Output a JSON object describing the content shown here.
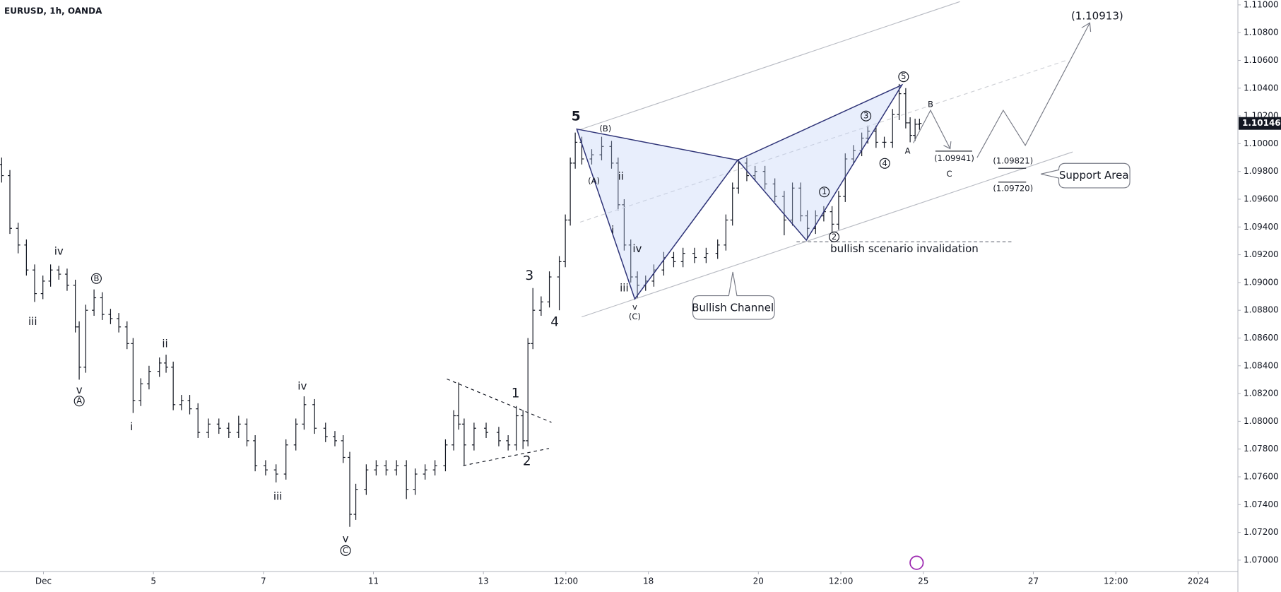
{
  "chart_data": {
    "type": "ohlc",
    "title": "EURUSD, 1h, OANDA",
    "color": "#131722",
    "x": [
      -0.76,
      -0.61,
      -0.46,
      -0.31,
      -0.16,
      -0.01,
      0.13,
      0.28,
      0.43,
      0.58,
      0.65,
      0.77,
      0.92,
      1.07,
      1.22,
      1.37,
      1.52,
      1.63,
      1.77,
      1.92,
      2.11,
      2.23,
      2.36,
      2.51,
      2.66,
      2.81,
      3.0,
      3.19,
      3.37,
      3.55,
      3.7,
      3.85,
      4.04,
      4.23,
      4.41,
      4.59,
      4.74,
      4.93,
      5.13,
      5.3,
      5.45,
      5.57,
      5.68,
      5.87,
      6.05,
      6.23,
      6.42,
      6.6,
      6.76,
      6.94,
      7.12,
      7.31,
      7.46,
      7.55,
      7.65,
      7.83,
      8.05,
      8.28,
      8.45,
      8.6,
      8.72,
      8.81,
      8.9,
      9.05,
      9.2,
      9.38,
      9.49,
      9.58,
      9.67,
      9.79,
      9.97,
      10.15,
      10.33,
      10.45,
      10.56,
      10.68,
      10.8,
      10.95,
      11.1,
      11.28,
      11.46,
      11.63,
      11.84,
      12.05,
      12.26,
      12.41,
      12.53,
      12.64,
      12.79,
      12.94,
      13.12,
      13.3,
      13.47,
      13.62,
      13.77,
      13.89,
      14.04,
      14.19,
      14.34,
      14.46,
      14.58,
      14.73,
      14.88,
      14.99,
      15.14,
      15.29,
      15.44,
      15.56,
      15.68,
      15.76,
      15.85,
      15.93
    ],
    "open": [
      1.0985,
      1.0977,
      1.0939,
      1.0927,
      1.0909,
      1.0892,
      1.0901,
      1.0909,
      1.0906,
      1.0898,
      1.0868,
      1.0839,
      1.088,
      1.0889,
      1.0877,
      1.0874,
      1.0868,
      1.0856,
      1.0815,
      1.0827,
      1.0836,
      1.0842,
      1.0839,
      1.0812,
      1.0815,
      1.0809,
      1.0792,
      1.0798,
      1.0795,
      1.0792,
      1.0798,
      1.0786,
      1.0768,
      1.0765,
      1.0762,
      1.0783,
      1.0798,
      1.0812,
      1.0795,
      1.0789,
      1.0786,
      1.0774,
      1.0733,
      1.0751,
      1.0765,
      1.0768,
      1.0765,
      1.0768,
      1.0751,
      1.0762,
      1.0765,
      1.0768,
      1.0783,
      1.0804,
      1.0798,
      1.0783,
      1.0795,
      1.0792,
      1.0786,
      1.0783,
      1.0804,
      1.0786,
      1.0856,
      1.088,
      1.0886,
      1.0904,
      1.0915,
      1.0945,
      1.0986,
      1.1001,
      1.0989,
      1.0992,
      1.0998,
      1.0986,
      1.0956,
      1.0927,
      1.0904,
      1.0898,
      1.0901,
      1.0909,
      1.0918,
      1.0915,
      1.0921,
      1.0918,
      1.0921,
      1.0927,
      1.0945,
      1.0968,
      1.0986,
      1.0977,
      1.098,
      1.0971,
      1.0962,
      1.0945,
      1.0968,
      1.0948,
      1.0939,
      1.0948,
      1.0951,
      1.0942,
      1.0962,
      1.0989,
      1.0995,
      1.1004,
      1.1009,
      1.1001,
      1.1001,
      1.1021,
      1.1036,
      1.1015,
      1.1006,
      1.1014
    ],
    "high": [
      1.099,
      1.0981,
      1.0943,
      1.0931,
      1.0913,
      1.0905,
      1.0913,
      1.0912,
      1.091,
      1.0902,
      1.0872,
      1.0884,
      1.0895,
      1.0893,
      1.0881,
      1.0878,
      1.0872,
      1.086,
      1.0831,
      1.084,
      1.0846,
      1.0848,
      1.0843,
      1.0819,
      1.0819,
      1.0813,
      1.0802,
      1.0802,
      1.0799,
      1.0804,
      1.0802,
      1.079,
      1.0772,
      1.0769,
      1.0787,
      1.0802,
      1.0818,
      1.0816,
      1.0799,
      1.0793,
      1.079,
      1.0778,
      1.0755,
      1.0769,
      1.0772,
      1.0772,
      1.0772,
      1.0772,
      1.0766,
      1.0769,
      1.0772,
      1.0787,
      1.0808,
      1.0828,
      1.0802,
      1.0799,
      1.0799,
      1.0796,
      1.079,
      1.0811,
      1.0808,
      1.086,
      1.0896,
      1.089,
      1.0908,
      1.0919,
      1.0949,
      1.099,
      1.1008,
      1.1005,
      1.0996,
      1.1005,
      1.1002,
      1.099,
      1.096,
      1.0931,
      1.0908,
      1.0905,
      1.0913,
      1.0922,
      1.0922,
      1.0925,
      1.0925,
      1.0925,
      1.0931,
      1.0949,
      1.0972,
      1.0989,
      1.099,
      1.0984,
      1.0984,
      1.0975,
      1.0966,
      1.0972,
      1.0972,
      1.0952,
      1.0952,
      1.0955,
      1.0955,
      1.0966,
      1.0993,
      1.0999,
      1.1008,
      1.1013,
      1.1013,
      1.1005,
      1.1025,
      1.1043,
      1.104,
      1.1019,
      1.1018,
      1.1018
    ],
    "low": [
      1.0972,
      1.0935,
      1.0921,
      1.0905,
      1.0886,
      1.0888,
      1.0897,
      1.0902,
      1.0894,
      1.0864,
      1.083,
      1.0835,
      1.0876,
      1.0873,
      1.087,
      1.0864,
      1.0852,
      1.0806,
      1.0811,
      1.0823,
      1.0832,
      1.0835,
      1.0808,
      1.0808,
      1.0805,
      1.0788,
      1.0788,
      1.0791,
      1.0788,
      1.0788,
      1.0782,
      1.0764,
      1.0761,
      1.0756,
      1.0758,
      1.0779,
      1.0794,
      1.0791,
      1.0785,
      1.0782,
      1.077,
      1.0724,
      1.0729,
      1.0747,
      1.0761,
      1.0761,
      1.0761,
      1.0744,
      1.0747,
      1.0758,
      1.0761,
      1.0764,
      1.0779,
      1.0794,
      1.0768,
      1.0779,
      1.0788,
      1.0782,
      1.0779,
      1.0779,
      1.078,
      1.0782,
      1.0852,
      1.0876,
      1.0882,
      1.088,
      1.0911,
      1.0941,
      1.0982,
      1.0985,
      1.0985,
      1.0988,
      1.0982,
      1.0952,
      1.0923,
      1.09,
      1.0889,
      1.0894,
      1.0897,
      1.0905,
      1.0911,
      1.0911,
      1.0914,
      1.0914,
      1.0917,
      1.0923,
      1.0941,
      1.0964,
      1.0973,
      1.0973,
      1.0967,
      1.0958,
      1.0934,
      1.0941,
      1.0944,
      1.0931,
      1.0935,
      1.0944,
      1.0936,
      1.0938,
      1.0958,
      1.0985,
      1.0991,
      1.1,
      1.0997,
      1.0997,
      1.0997,
      1.1017,
      1.1011,
      1.1001,
      1.1002,
      1.101
    ],
    "close": [
      1.0977,
      1.0939,
      1.0927,
      1.0909,
      1.0892,
      1.0901,
      1.0909,
      1.0906,
      1.0898,
      1.0868,
      1.0839,
      1.088,
      1.0889,
      1.0877,
      1.0874,
      1.0868,
      1.0856,
      1.0815,
      1.0827,
      1.0836,
      1.0842,
      1.0839,
      1.0812,
      1.0815,
      1.0809,
      1.0792,
      1.0798,
      1.0795,
      1.0792,
      1.0798,
      1.0786,
      1.0768,
      1.0765,
      1.0762,
      1.0783,
      1.0798,
      1.0812,
      1.0795,
      1.0789,
      1.0786,
      1.0774,
      1.0733,
      1.0751,
      1.0765,
      1.0768,
      1.0765,
      1.0768,
      1.0751,
      1.0762,
      1.0765,
      1.0768,
      1.0783,
      1.0804,
      1.0798,
      1.0783,
      1.0795,
      1.0792,
      1.0786,
      1.0783,
      1.0804,
      1.0786,
      1.0856,
      1.088,
      1.0886,
      1.0904,
      1.0915,
      1.0945,
      1.0986,
      1.1001,
      1.0989,
      1.0992,
      1.0998,
      1.0986,
      1.0956,
      1.0927,
      1.0904,
      1.0898,
      1.0901,
      1.0909,
      1.0918,
      1.0915,
      1.0921,
      1.0918,
      1.0921,
      1.0927,
      1.0945,
      1.0968,
      1.0986,
      1.0977,
      1.098,
      1.0971,
      1.0962,
      1.0945,
      1.0968,
      1.0948,
      1.0939,
      1.0948,
      1.0951,
      1.0942,
      1.0962,
      1.0989,
      1.0995,
      1.1004,
      1.1009,
      1.1001,
      1.1001,
      1.1021,
      1.1036,
      1.1015,
      1.1006,
      1.1014,
      1.10146
    ],
    "xlim": [
      -0.79,
      21.72
    ],
    "ylim": [
      1.06918,
      1.11035
    ],
    "xticks": [
      {
        "value": 0,
        "label": "Dec"
      },
      {
        "value": 2,
        "label": "5"
      },
      {
        "value": 4,
        "label": "7"
      },
      {
        "value": 6,
        "label": "11"
      },
      {
        "value": 8,
        "label": "13"
      },
      {
        "value": 9.5,
        "label": "12:00"
      },
      {
        "value": 11,
        "label": "18"
      },
      {
        "value": 13,
        "label": "20"
      },
      {
        "value": 14.5,
        "label": "12:00"
      },
      {
        "value": 16,
        "label": "25"
      },
      {
        "value": 18,
        "label": "27"
      },
      {
        "value": 19.5,
        "label": "12:00"
      },
      {
        "value": 21,
        "label": "2024"
      }
    ],
    "yticks": [
      {
        "value": 1.07,
        "label": "1.07000"
      },
      {
        "value": 1.072,
        "label": "1.07200"
      },
      {
        "value": 1.074,
        "label": "1.07400"
      },
      {
        "value": 1.076,
        "label": "1.07600"
      },
      {
        "value": 1.078,
        "label": "1.07800"
      },
      {
        "value": 1.08,
        "label": "1.08000"
      },
      {
        "value": 1.082,
        "label": "1.08200"
      },
      {
        "value": 1.084,
        "label": "1.08400"
      },
      {
        "value": 1.086,
        "label": "1.08600"
      },
      {
        "value": 1.088,
        "label": "1.08800"
      },
      {
        "value": 1.09,
        "label": "1.09000"
      },
      {
        "value": 1.092,
        "label": "1.09200"
      },
      {
        "value": 1.094,
        "label": "1.09400"
      },
      {
        "value": 1.096,
        "label": "1.09600"
      },
      {
        "value": 1.098,
        "label": "1.09800"
      },
      {
        "value": 1.1,
        "label": "1.10000"
      },
      {
        "value": 1.102,
        "label": "1.10200"
      },
      {
        "value": 1.104,
        "label": "1.10400"
      },
      {
        "value": 1.106,
        "label": "1.10600"
      },
      {
        "value": 1.108,
        "label": "1.10800"
      },
      {
        "value": 1.11,
        "label": "1.11000"
      }
    ],
    "last_price": {
      "value": 1.10146,
      "label": "1.10146"
    },
    "annotations": [
      "iv",
      "iii",
      "B",
      "v",
      "A",
      "ii",
      "i",
      "iv",
      "iii",
      "v",
      "C",
      "1",
      "2",
      "3",
      "4",
      "5",
      "(B)",
      "(A)",
      "ii",
      "i",
      "iv",
      "iii",
      "v",
      "(C)",
      "1",
      "2",
      "3",
      "4",
      "5",
      "A",
      "B",
      "C",
      "(1.09941)",
      "(1.09821)",
      "(1.09720)",
      "(1.10913)",
      "bullish scenario invalidation",
      "Bullish Channel",
      "Support Area"
    ]
  }
}
